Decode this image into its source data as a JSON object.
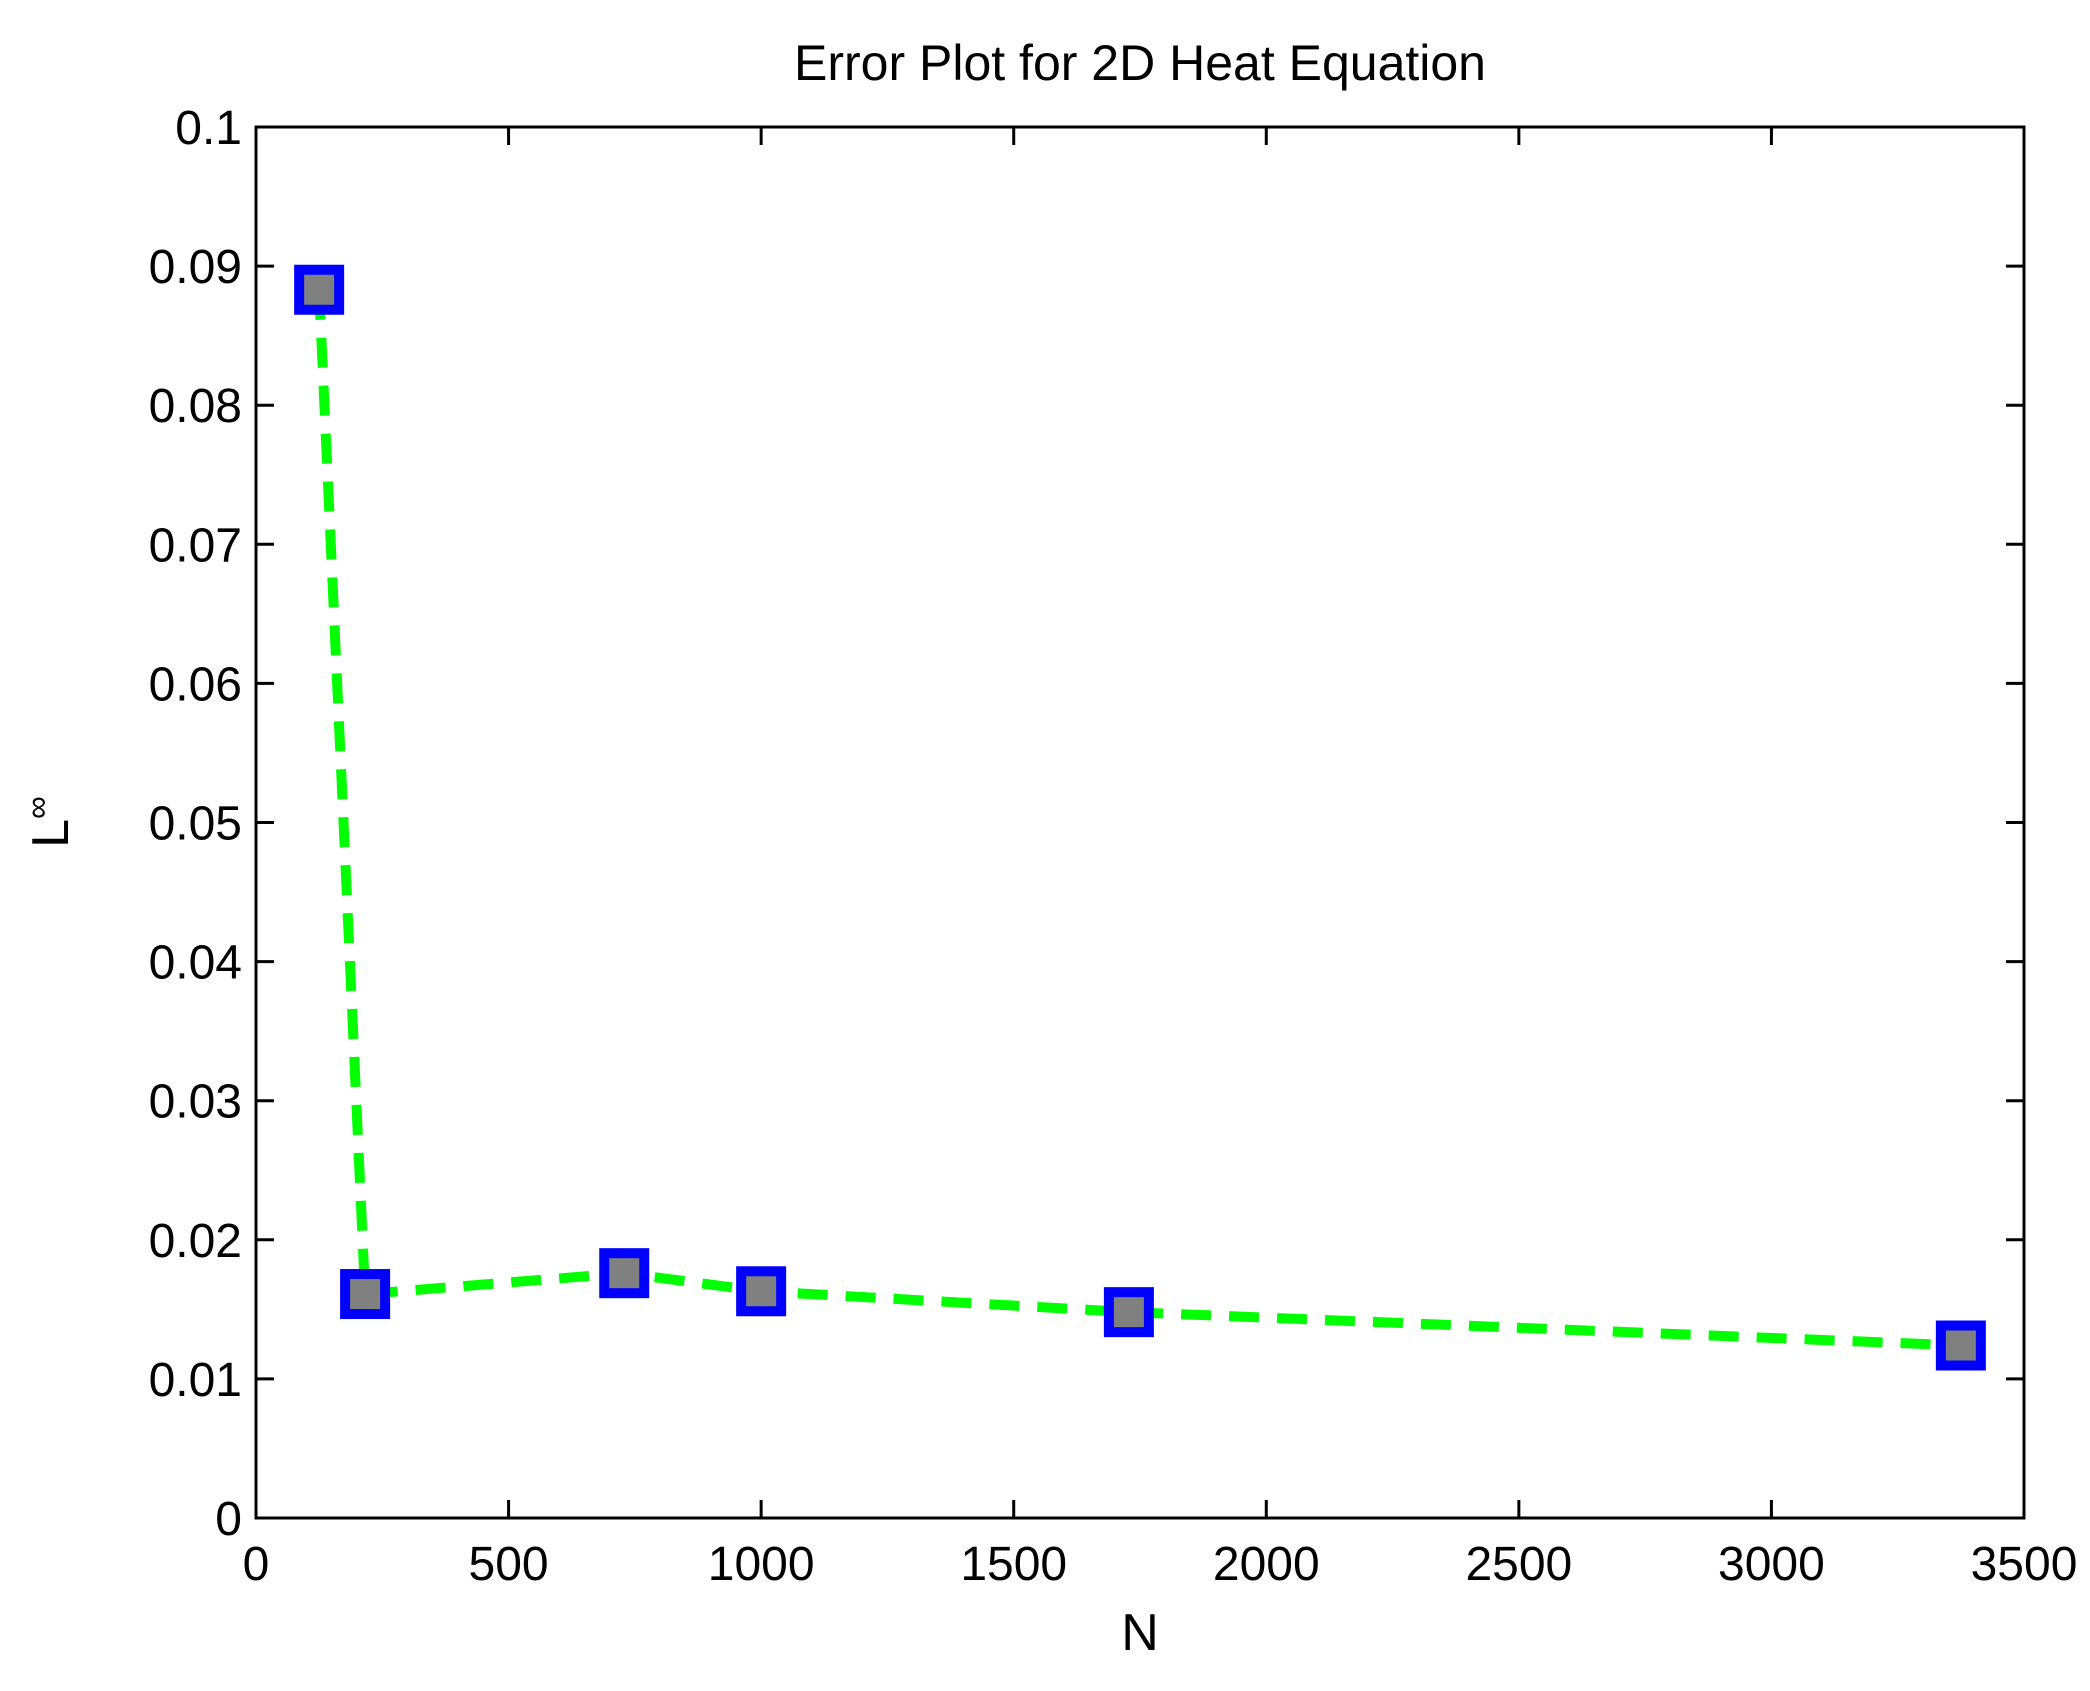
{
  "chart_data": {
    "type": "line",
    "title": "Error Plot for 2D Heat Equation",
    "xlabel": "N",
    "ylabel": {
      "main": "L",
      "subscript": "∞"
    },
    "xlim": [
      0,
      3500
    ],
    "ylim": [
      0,
      0.1
    ],
    "xticks": [
      0,
      500,
      1000,
      1500,
      2000,
      2500,
      3000,
      3500
    ],
    "xtick_labels": [
      "0",
      "500",
      "1000",
      "1500",
      "2000",
      "2500",
      "3000",
      "3500"
    ],
    "yticks": [
      0,
      0.01,
      0.02,
      0.03,
      0.04,
      0.05,
      0.06,
      0.07,
      0.08,
      0.09,
      0.1
    ],
    "ytick_labels": [
      "0",
      "0.01",
      "0.02",
      "0.03",
      "0.04",
      "0.05",
      "0.06",
      "0.07",
      "0.08",
      "0.09",
      "0.1"
    ],
    "grid": false,
    "series": [
      {
        "x": [
          125,
          216,
          729,
          1000,
          1728,
          3375
        ],
        "y": [
          0.0883,
          0.0161,
          0.0176,
          0.0163,
          0.0148,
          0.0124
        ],
        "line_color": "#00ff00",
        "line_style": "dashed",
        "marker": "square",
        "marker_edge_color": "#0000ff",
        "marker_face_color": "#808080"
      }
    ]
  }
}
